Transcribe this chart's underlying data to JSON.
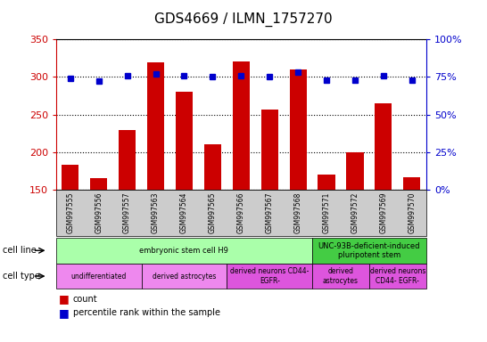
{
  "title": "GDS4669 / ILMN_1757270",
  "samples": [
    "GSM997555",
    "GSM997556",
    "GSM997557",
    "GSM997563",
    "GSM997564",
    "GSM997565",
    "GSM997566",
    "GSM997567",
    "GSM997568",
    "GSM997571",
    "GSM997572",
    "GSM997569",
    "GSM997570"
  ],
  "counts": [
    183,
    166,
    229,
    320,
    280,
    211,
    321,
    257,
    310,
    170,
    200,
    265,
    167
  ],
  "percentiles": [
    74,
    72,
    76,
    77,
    76,
    75,
    76,
    75,
    78,
    73,
    73,
    76,
    73
  ],
  "bar_color": "#cc0000",
  "dot_color": "#0000cc",
  "ylim_left": [
    150,
    350
  ],
  "ylim_right": [
    0,
    100
  ],
  "yticks_left": [
    150,
    200,
    250,
    300,
    350
  ],
  "yticks_right": [
    0,
    25,
    50,
    75,
    100
  ],
  "cell_line_groups": [
    {
      "label": "embryonic stem cell H9",
      "start": 0,
      "end": 9,
      "color": "#aaffaa"
    },
    {
      "label": "UNC-93B-deficient-induced\npluripotent stem",
      "start": 9,
      "end": 13,
      "color": "#44cc44"
    }
  ],
  "cell_type_groups": [
    {
      "label": "undifferentiated",
      "start": 0,
      "end": 3,
      "color": "#ee88ee"
    },
    {
      "label": "derived astrocytes",
      "start": 3,
      "end": 6,
      "color": "#ee88ee"
    },
    {
      "label": "derived neurons CD44-\nEGFR-",
      "start": 6,
      "end": 9,
      "color": "#dd55dd"
    },
    {
      "label": "derived\nastrocytes",
      "start": 9,
      "end": 11,
      "color": "#dd55dd"
    },
    {
      "label": "derived neurons\nCD44- EGFR-",
      "start": 11,
      "end": 13,
      "color": "#dd55dd"
    }
  ],
  "left_axis_color": "#cc0000",
  "right_axis_color": "#0000cc",
  "tick_label_bg": "#cccccc",
  "plot_bg_color": "#ffffff"
}
